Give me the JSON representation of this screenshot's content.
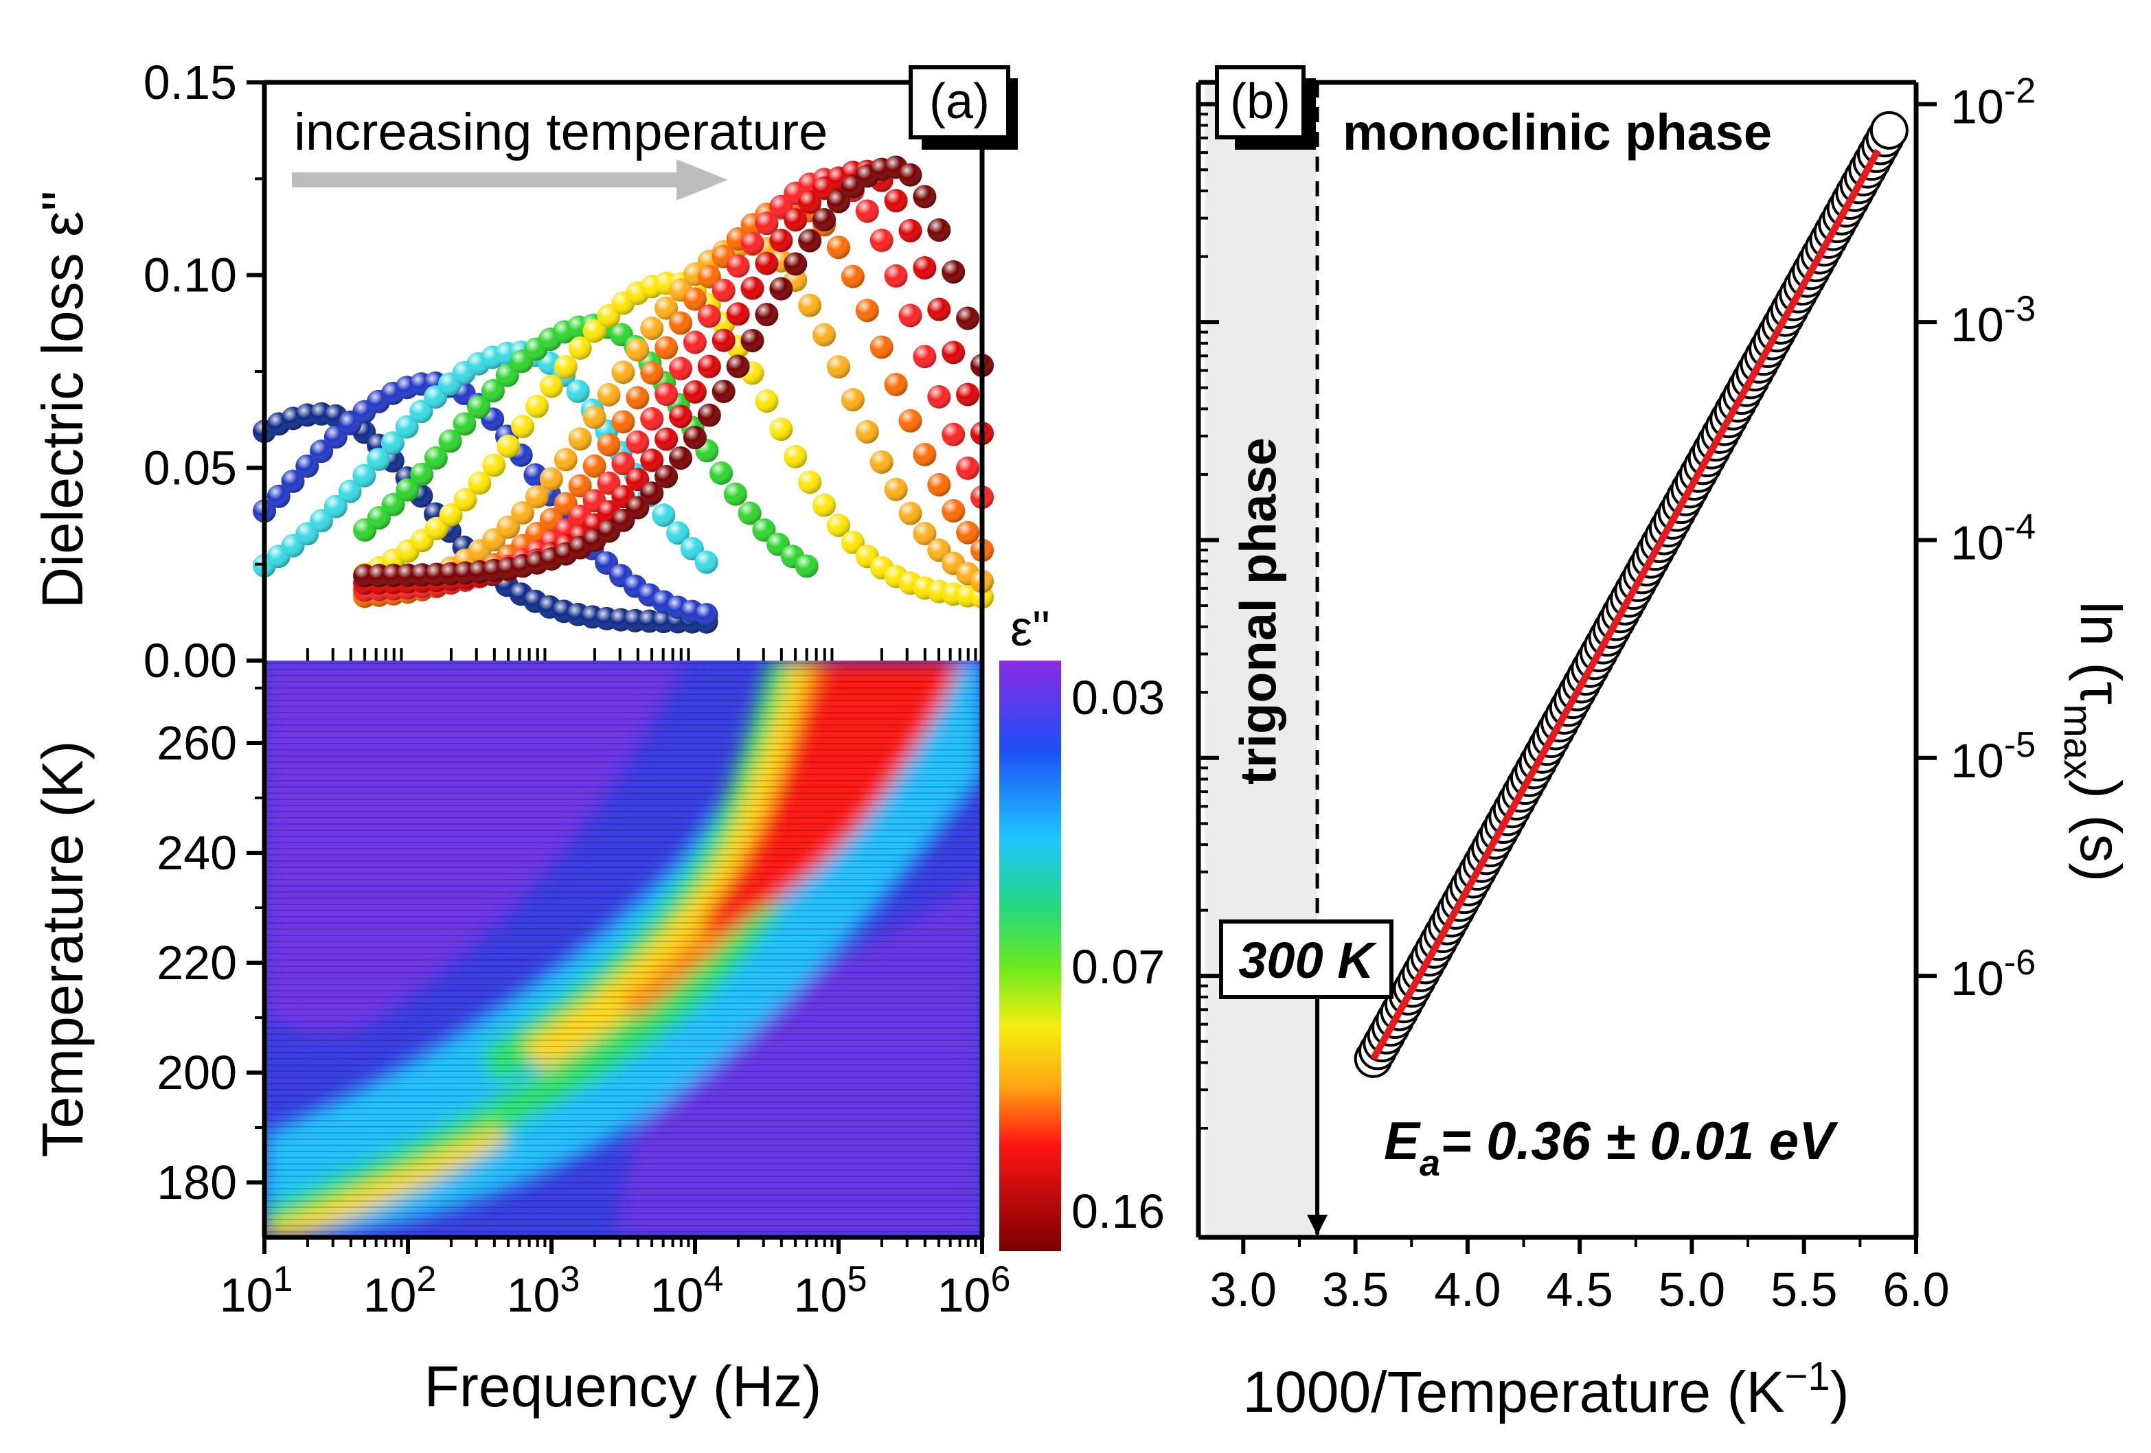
{
  "colors": {
    "arrow": "#bdbdbd",
    "fit_line": "#e8191b",
    "trigonal_band": "#ececec",
    "series_palette": [
      "#0d2a8a",
      "#1f37c8",
      "#3fa9f5",
      "#34dbe6",
      "#2bd62b",
      "#c8ee22",
      "#ffe600",
      "#ffae14",
      "#ff6a00",
      "#ff2020",
      "#e00000",
      "#7a0000"
    ]
  },
  "chart_data": [
    {
      "panel": "(a) top",
      "type": "scatter",
      "label": "(a)",
      "annotation": "increasing temperature",
      "ylabel": "Dielectric loss ε\"",
      "xscale": "log",
      "xlim_exp": [
        1,
        6
      ],
      "ylim": [
        0,
        0.15
      ],
      "yticks": [
        "0.00",
        "0.05",
        "0.10",
        "0.15"
      ],
      "series": [
        {
          "color": "#0d2a8a",
          "fpeak": 25,
          "height": 0.064,
          "base": 0.01,
          "fmin": 10,
          "fmax": 12000,
          "hi": 0.45
        },
        {
          "color": "#1f37c8",
          "fpeak": 150,
          "height": 0.072,
          "base": 0.01,
          "fmin": 10,
          "fmax": 12000,
          "hi": 0.4
        },
        {
          "color": "#34dbe6",
          "fpeak": 600,
          "height": 0.08,
          "base": 0.013,
          "fmin": 10,
          "fmax": 12000,
          "hi": 0.42
        },
        {
          "color": "#2bd62b",
          "fpeak": 2000,
          "height": 0.087,
          "base": 0.017,
          "fmin": 50,
          "fmax": 60000,
          "hi": 0.44
        },
        {
          "color": "#ffe600",
          "fpeak": 7000,
          "height": 0.098,
          "base": 0.016,
          "fmin": 50,
          "fmax": 1000000,
          "hi": 0.48
        },
        {
          "color": "#ffae14",
          "fpeak": 25000,
          "height": 0.108,
          "base": 0.016,
          "fmin": 50,
          "fmax": 1000000,
          "hi": 0.52
        },
        {
          "color": "#ff6a00",
          "fpeak": 50000,
          "height": 0.118,
          "base": 0.016,
          "fmin": 50,
          "fmax": 1000000,
          "hi": 0.55
        },
        {
          "color": "#ff2020",
          "fpeak": 90000,
          "height": 0.125,
          "base": 0.018,
          "fmin": 50,
          "fmax": 1000000,
          "hi": 0.6
        },
        {
          "color": "#e00000",
          "fpeak": 150000,
          "height": 0.127,
          "base": 0.02,
          "fmin": 50,
          "fmax": 1000000,
          "hi": 0.65
        },
        {
          "color": "#7a0000",
          "fpeak": 250000,
          "height": 0.128,
          "base": 0.022,
          "fmin": 50,
          "fmax": 1000000,
          "hi": 0.75
        }
      ]
    },
    {
      "panel": "(a) bottom",
      "type": "heatmap",
      "xlabel": "Frequency (Hz)",
      "ylabel": "Temperature (K)",
      "xticks_base": [
        "10",
        "10",
        "10",
        "10",
        "10",
        "10"
      ],
      "xticks_exp": [
        "1",
        "2",
        "3",
        "4",
        "5",
        "6"
      ],
      "ylim": [
        170,
        275
      ],
      "yticks": [
        "180",
        "200",
        "220",
        "240",
        "260"
      ],
      "colorbar_title": "ε\"",
      "colorbar_ticks": [
        "0.03",
        "0.07",
        "0.16"
      ],
      "colorbar_values": [
        0.03,
        0.07,
        0.16
      ]
    },
    {
      "panel": "(b)",
      "type": "scatter",
      "label": "(b)",
      "xlabel_main": "1000/Temperature (K",
      "xlabel_sup": "−1",
      "xlabel_end": ")",
      "xlim": [
        2.8,
        6.0
      ],
      "xticks": [
        "3.0",
        "3.5",
        "4.0",
        "4.5",
        "5.0",
        "5.5",
        "6.0"
      ],
      "ylabel_main": "ln (τ",
      "ylabel_sub": "max",
      "ylabel_end": ") (s)",
      "yscale": "log",
      "ylim_exp": [
        -7.2,
        -1.9
      ],
      "yticks_base": [
        "10",
        "10",
        "10",
        "10",
        "10"
      ],
      "yticks_exp": [
        "-2",
        "-3",
        "-4",
        "-5",
        "-6"
      ],
      "monoclinic_label": "monoclinic phase",
      "trigonal_label": "trigonal phase",
      "transition_label": "300 K",
      "transition_x": 3.33,
      "activation_label": "E",
      "activation_sub": "a",
      "activation_value": "= 0.36 ± 0.01 eV",
      "fit": {
        "x1": 3.58,
        "log_y1": -6.38,
        "x2": 5.88,
        "log_y2": -2.12
      },
      "points": {
        "x_start": 3.58,
        "x_end": 5.88,
        "count": 120
      }
    }
  ]
}
